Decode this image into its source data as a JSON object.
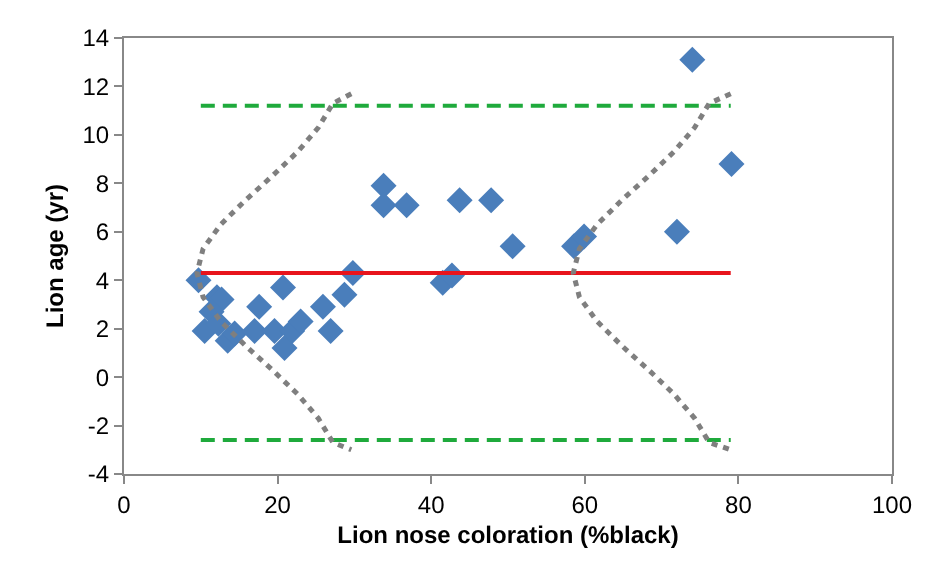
{
  "chart_data": {
    "type": "scatter",
    "xlabel": "Lion nose coloration (%black)",
    "ylabel": "Lion age (yr)",
    "xlim": [
      0,
      100
    ],
    "xticks": [
      0,
      20,
      40,
      60,
      80,
      100
    ],
    "ylim": [
      -4,
      14
    ],
    "yticks": [
      -4,
      -2,
      0,
      2,
      4,
      6,
      8,
      10,
      12,
      14
    ],
    "series": [
      {
        "marker": "diamond",
        "color": "#4a7ebb",
        "x": [
          9.7,
          12.1,
          12.7,
          11.4,
          10.5,
          12.3,
          13.5,
          14.4,
          17.0,
          17.6,
          19.6,
          20.7,
          20.9,
          21.9,
          23.0,
          25.9,
          26.9,
          28.7,
          29.8,
          33.8,
          33.8,
          36.8,
          41.5,
          42.7,
          43.7,
          47.8,
          50.6,
          58.6,
          59.9,
          72.0,
          74.0,
          79.1
        ],
        "values": [
          4.0,
          3.3,
          3.2,
          2.7,
          1.9,
          2.2,
          1.5,
          1.8,
          1.9,
          2.9,
          1.9,
          3.7,
          1.2,
          1.9,
          2.3,
          2.9,
          1.9,
          3.4,
          4.3,
          7.9,
          7.1,
          7.1,
          3.9,
          4.2,
          7.3,
          7.3,
          5.4,
          5.4,
          5.8,
          6.0,
          13.1,
          8.8
        ]
      },
      {
        "type": "line",
        "marker": "none",
        "line_style": "solid",
        "color": "#e8141c",
        "x": [
          10,
          79
        ],
        "values": [
          4.3,
          4.3
        ]
      },
      {
        "type": "line",
        "marker": "none",
        "line_style": "dashed",
        "color": "#1faa3c",
        "x": [
          10,
          79
        ],
        "values": [
          11.2,
          11.2
        ]
      },
      {
        "type": "line",
        "marker": "none",
        "line_style": "dashed",
        "color": "#1faa3c",
        "x": [
          10,
          79
        ],
        "values": [
          -2.6,
          -2.6
        ]
      },
      {
        "type": "line",
        "marker": "none",
        "line_style": "dotted",
        "color": "#7f7f7f",
        "x": [
          29.6,
          27.2,
          25.3,
          22.6,
          19.3,
          15.8,
          12.6,
          10.3,
          9.5,
          10.3,
          12.6,
          15.8,
          19.3,
          22.6,
          25.3,
          27.2,
          29.6
        ],
        "values": [
          11.7,
          11.3,
          10.3,
          9.3,
          8.3,
          7.3,
          6.3,
          5.3,
          4.3,
          3.3,
          2.3,
          1.3,
          0.3,
          -0.7,
          -1.7,
          -2.7,
          -3.0
        ]
      },
      {
        "type": "line",
        "marker": "none",
        "line_style": "dotted",
        "color": "#7f7f7f",
        "x": [
          79.0,
          76.2,
          74.3,
          71.6,
          68.3,
          64.8,
          61.6,
          59.3,
          58.5,
          59.3,
          61.6,
          64.8,
          68.3,
          71.6,
          74.3,
          76.2,
          79.0
        ],
        "values": [
          11.7,
          11.3,
          10.3,
          9.3,
          8.3,
          7.3,
          6.3,
          5.3,
          4.3,
          3.3,
          2.3,
          1.3,
          0.3,
          -0.7,
          -1.7,
          -2.7,
          -3.0
        ]
      }
    ]
  }
}
